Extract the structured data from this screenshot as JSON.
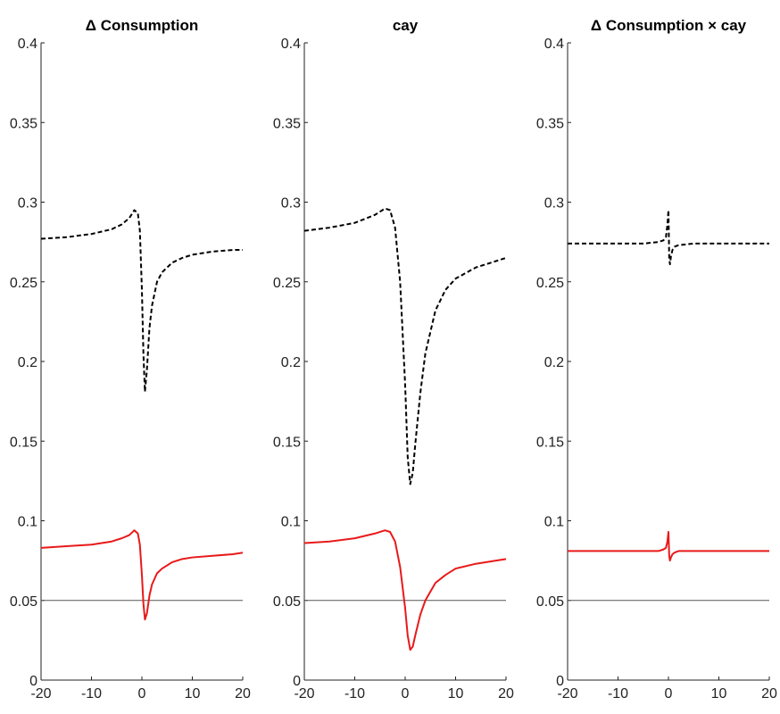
{
  "colors": {
    "dashed_series": "#000000",
    "solid_series": "#e8191a",
    "reference_line": "#555555",
    "axis": "#222222"
  },
  "chart_data": [
    {
      "type": "line",
      "title": "Δ Consumption",
      "xlim": [
        -20,
        20
      ],
      "ylim": [
        0,
        0.4
      ],
      "xticks": [
        "-20",
        "-10",
        "0",
        "10",
        "20"
      ],
      "yticks": [
        "0",
        "0.05",
        "0.1",
        "0.15",
        "0.2",
        "0.25",
        "0.3",
        "0.35",
        "0.4"
      ],
      "grid": false,
      "reference_line": {
        "y": 0.05
      },
      "series": [
        {
          "style": "dashed",
          "color": "#000000",
          "x": [
            -20,
            -15,
            -10,
            -6,
            -4,
            -2.5,
            -1.5,
            -0.8,
            -0.4,
            0,
            0.3,
            0.6,
            1,
            1.5,
            2,
            3,
            4,
            6,
            8,
            10,
            14,
            18,
            20
          ],
          "y": [
            0.277,
            0.278,
            0.28,
            0.283,
            0.286,
            0.29,
            0.295,
            0.293,
            0.282,
            0.245,
            0.205,
            0.181,
            0.195,
            0.221,
            0.235,
            0.25,
            0.256,
            0.262,
            0.265,
            0.267,
            0.269,
            0.27,
            0.27
          ]
        },
        {
          "style": "solid",
          "color": "#e8191a",
          "x": [
            -20,
            -15,
            -10,
            -6,
            -4,
            -2.5,
            -1.5,
            -0.8,
            -0.4,
            0,
            0.3,
            0.6,
            1,
            1.5,
            2,
            3,
            4,
            6,
            8,
            10,
            14,
            18,
            20
          ],
          "y": [
            0.083,
            0.084,
            0.085,
            0.087,
            0.089,
            0.091,
            0.094,
            0.092,
            0.085,
            0.066,
            0.048,
            0.038,
            0.042,
            0.053,
            0.06,
            0.067,
            0.07,
            0.074,
            0.076,
            0.077,
            0.078,
            0.079,
            0.08
          ]
        }
      ]
    },
    {
      "type": "line",
      "title": "cay",
      "xlim": [
        -20,
        20
      ],
      "ylim": [
        0,
        0.4
      ],
      "xticks": [
        "-20",
        "-10",
        "0",
        "10",
        "20"
      ],
      "yticks": [
        "0",
        "0.05",
        "0.1",
        "0.15",
        "0.2",
        "0.25",
        "0.3",
        "0.35",
        "0.4"
      ],
      "grid": false,
      "reference_line": {
        "y": 0.05
      },
      "series": [
        {
          "style": "dashed",
          "color": "#000000",
          "x": [
            -20,
            -15,
            -10,
            -6,
            -4,
            -3,
            -2,
            -1,
            0,
            0.5,
            1,
            1.5,
            2,
            3,
            4,
            6,
            8,
            10,
            14,
            18,
            20
          ],
          "y": [
            0.282,
            0.284,
            0.287,
            0.292,
            0.296,
            0.295,
            0.284,
            0.25,
            0.185,
            0.14,
            0.123,
            0.13,
            0.148,
            0.18,
            0.205,
            0.232,
            0.245,
            0.252,
            0.259,
            0.263,
            0.265
          ]
        },
        {
          "style": "solid",
          "color": "#e8191a",
          "x": [
            -20,
            -15,
            -10,
            -6,
            -4,
            -3,
            -2,
            -1,
            0,
            0.5,
            1,
            1.5,
            2,
            3,
            4,
            6,
            8,
            10,
            14,
            18,
            20
          ],
          "y": [
            0.086,
            0.087,
            0.089,
            0.092,
            0.094,
            0.093,
            0.087,
            0.071,
            0.045,
            0.028,
            0.019,
            0.021,
            0.028,
            0.041,
            0.05,
            0.061,
            0.066,
            0.07,
            0.073,
            0.075,
            0.076
          ]
        }
      ]
    },
    {
      "type": "line",
      "title": "Δ Consumption × cay",
      "xlim": [
        -20,
        20
      ],
      "ylim": [
        0,
        0.4
      ],
      "xticks": [
        "-20",
        "-10",
        "0",
        "10",
        "20"
      ],
      "yticks": [
        "0",
        "0.05",
        "0.1",
        "0.15",
        "0.2",
        "0.25",
        "0.3",
        "0.35",
        "0.4"
      ],
      "grid": false,
      "reference_line": {
        "y": 0.05
      },
      "series": [
        {
          "style": "dashed",
          "color": "#000000",
          "x": [
            -20,
            -10,
            -5,
            -2,
            -1,
            -0.5,
            -0.2,
            0,
            0.15,
            0.3,
            0.5,
            0.8,
            1.2,
            2,
            5,
            10,
            20
          ],
          "y": [
            0.274,
            0.274,
            0.274,
            0.275,
            0.276,
            0.278,
            0.286,
            0.295,
            0.265,
            0.261,
            0.266,
            0.27,
            0.272,
            0.273,
            0.274,
            0.274,
            0.274
          ]
        },
        {
          "style": "solid",
          "color": "#e8191a",
          "x": [
            -20,
            -10,
            -5,
            -2,
            -1,
            -0.5,
            -0.2,
            0,
            0.15,
            0.3,
            0.5,
            0.8,
            1.2,
            2,
            5,
            10,
            20
          ],
          "y": [
            0.081,
            0.081,
            0.081,
            0.081,
            0.082,
            0.083,
            0.087,
            0.093,
            0.078,
            0.075,
            0.077,
            0.079,
            0.08,
            0.081,
            0.081,
            0.081,
            0.081
          ]
        }
      ]
    }
  ]
}
